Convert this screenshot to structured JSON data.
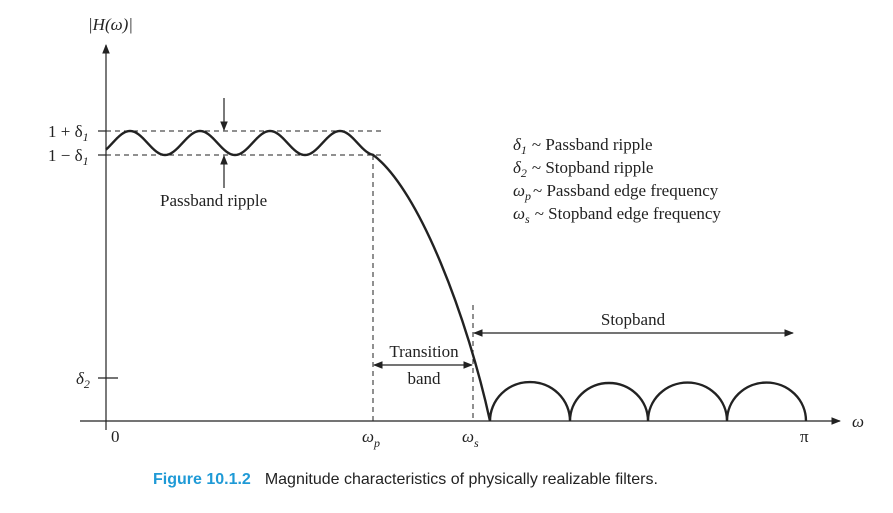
{
  "axis": {
    "y_label": "|H(ω)|",
    "x_label": "ω"
  },
  "y_ticks": [
    {
      "main": "1 + δ",
      "sub": "1"
    },
    {
      "main": "1 − δ",
      "sub": "1"
    },
    {
      "main": "δ",
      "sub": "2"
    }
  ],
  "x_ticks": [
    {
      "main": "0"
    },
    {
      "main": "ω",
      "sub": "p"
    },
    {
      "main": "ω",
      "sub": "s"
    },
    {
      "main": "π"
    }
  ],
  "annotations": {
    "passband_ripple": "Passband ripple",
    "transition_band": [
      "Transition",
      "band"
    ],
    "stopband": "Stopband"
  },
  "legend": [
    {
      "symbol": "δ",
      "sub": "1",
      "text": "~ Passband ripple"
    },
    {
      "symbol": "δ",
      "sub": "2",
      "text": "~ Stopband ripple"
    },
    {
      "symbol": "ω",
      "sub": "p",
      "text": "~ Passband edge frequency"
    },
    {
      "symbol": "ω",
      "sub": "s",
      "text": "~ Stopband edge frequency"
    }
  ],
  "caption": {
    "label": "Figure 10.1.2",
    "text": "Magnitude characteristics of physically realizable filters."
  }
}
